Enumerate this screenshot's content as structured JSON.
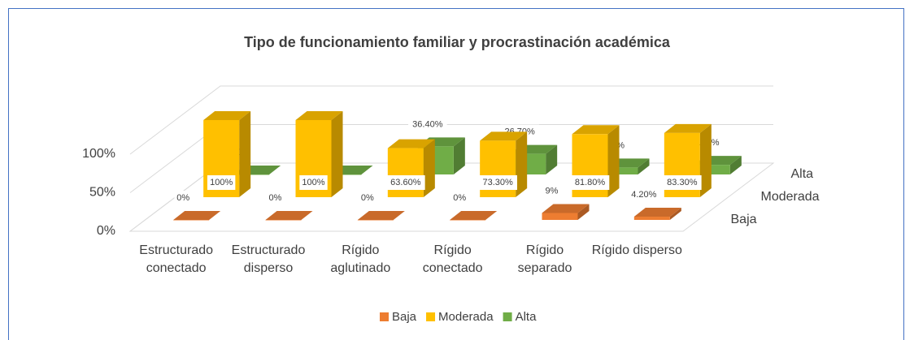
{
  "chart_data": {
    "type": "bar3d",
    "title": "Tipo de funcionamiento familiar y procrastinación académica",
    "categories": [
      "Estructurado conectado",
      "Estructurado disperso",
      "Rígido aglutinado",
      "Rígido conectado",
      "Rígido separado",
      "Rígido disperso"
    ],
    "series": [
      {
        "name": "Baja",
        "color": "#ED7D31",
        "values": [
          0,
          0,
          0,
          0,
          9,
          4.2
        ],
        "value_labels": [
          "0%",
          "0%",
          "0%",
          "0%",
          "9%",
          "4.20%"
        ]
      },
      {
        "name": "Moderada",
        "color": "#FFC000",
        "values": [
          100,
          100,
          63.6,
          73.3,
          81.8,
          83.3
        ],
        "value_labels": [
          "100%",
          "100%",
          "63.60%",
          "73.30%",
          "81.80%",
          "83.30%"
        ]
      },
      {
        "name": "Alta",
        "color": "#70AD47",
        "values": [
          0,
          0,
          36.4,
          26.7,
          9.1,
          12.5
        ],
        "value_labels": [
          "0%",
          "0%",
          "36.40%",
          "26.70%",
          "9.10%",
          "12.50%"
        ]
      }
    ],
    "ylim": [
      0,
      100
    ],
    "yticks": [
      {
        "value": 0,
        "label": "0%"
      },
      {
        "value": 50,
        "label": "50%"
      },
      {
        "value": 100,
        "label": "100%"
      }
    ],
    "grid": true,
    "legend": "bottom"
  }
}
